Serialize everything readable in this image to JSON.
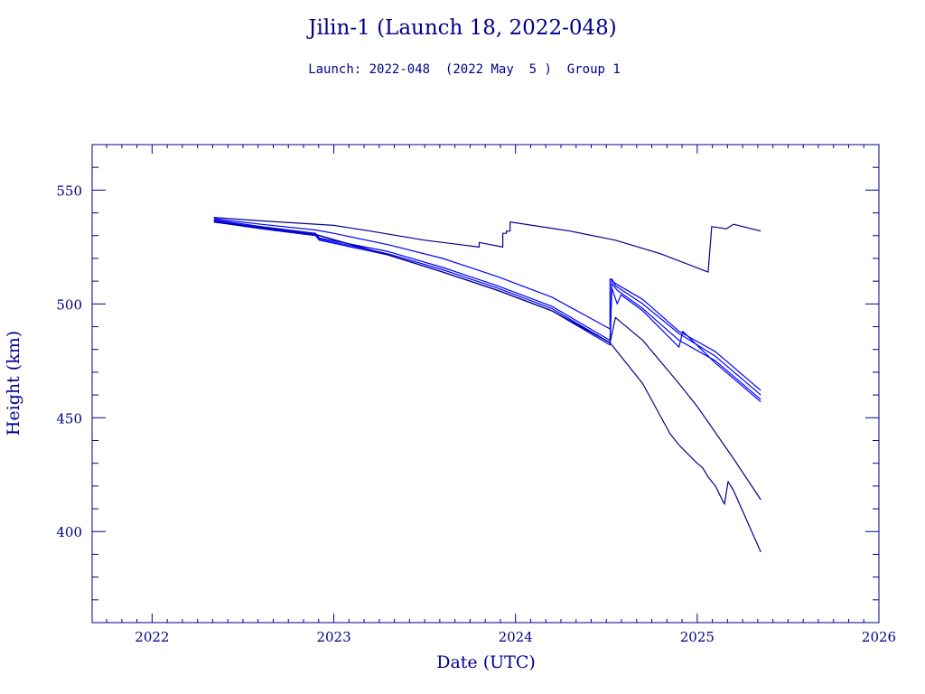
{
  "colors": {
    "axis": "#00008b",
    "series_dark": "#00008b",
    "series_bright": "#0000ff"
  },
  "chart_data": {
    "type": "line",
    "title": "Jilin-1 (Launch 18, 2022-048)",
    "subtitle": "Launch: 2022-048  (2022 May  5 )  Group 1",
    "xlabel": "Date (UTC)",
    "ylabel": "Height (km)",
    "xlim": [
      2021.67,
      2026.0
    ],
    "ylim": [
      360,
      570
    ],
    "x_ticks": [
      2022,
      2023,
      2024,
      2025,
      2026
    ],
    "y_ticks": [
      400,
      450,
      500,
      550
    ],
    "grid": false,
    "legend": "none",
    "series": [
      {
        "x": [
          2022.34,
          2022.6,
          2022.8,
          2023.0,
          2023.2,
          2023.5,
          2023.75,
          2023.8,
          2023.8,
          2023.93,
          2023.93,
          2023.95,
          2023.95,
          2023.97,
          2023.97,
          2024.3,
          2024.55,
          2024.8,
          2025.06,
          2025.06,
          2025.08,
          2025.08,
          2025.16,
          2025.16,
          2025.2,
          2025.2,
          2025.35
        ],
        "y": [
          538,
          536.5,
          535.5,
          534.5,
          532,
          528,
          525.5,
          525,
          527,
          525,
          531,
          531,
          532,
          532,
          536,
          532,
          528,
          522,
          514,
          514,
          534,
          534,
          533,
          533,
          535,
          535,
          532
        ]
      },
      {
        "x": [
          2022.34,
          2022.6,
          2022.9,
          2023.0,
          2023.3,
          2023.6,
          2023.9,
          2024.2,
          2024.52,
          2024.52,
          2024.55,
          2024.7,
          2024.9,
          2025.1,
          2025.35
        ],
        "y": [
          537.5,
          535,
          532.5,
          531,
          526,
          520,
          512,
          503,
          489,
          511,
          509,
          502,
          488,
          479,
          462
        ]
      },
      {
        "x": [
          2022.34,
          2022.6,
          2022.9,
          2022.92,
          2023.3,
          2023.6,
          2023.9,
          2024.2,
          2024.52,
          2024.53,
          2024.55,
          2024.7,
          2024.9,
          2025.1,
          2025.35
        ],
        "y": [
          537,
          534,
          531,
          529,
          523,
          516,
          508,
          499,
          484,
          511,
          508,
          500,
          487,
          477,
          460
        ]
      },
      {
        "x": [
          2022.34,
          2022.6,
          2022.9,
          2022.92,
          2023.3,
          2023.6,
          2023.9,
          2024.2,
          2024.52,
          2024.53,
          2024.56,
          2024.7,
          2024.9,
          2025.1,
          2025.35
        ],
        "y": [
          536.5,
          533.5,
          530.5,
          528.5,
          522,
          515,
          507,
          498,
          483,
          509,
          506,
          498,
          484,
          475,
          458
        ]
      },
      {
        "x": [
          2022.34,
          2022.6,
          2022.9,
          2022.92,
          2023.3,
          2023.6,
          2023.9,
          2024.2,
          2024.52,
          2024.53,
          2024.56,
          2024.58,
          2024.7,
          2024.9,
          2024.92,
          2025.1,
          2025.35
        ],
        "y": [
          536,
          533,
          530,
          528,
          521.5,
          514,
          506,
          497,
          482,
          507,
          500,
          504,
          497,
          481,
          488,
          474,
          457
        ]
      },
      {
        "x": [
          2022.34,
          2022.9,
          2023.3,
          2023.6,
          2023.9,
          2024.2,
          2024.52,
          2024.55,
          2024.7,
          2024.9,
          2025.0,
          2025.2,
          2025.35
        ],
        "y": [
          536,
          530.5,
          521.5,
          514,
          506,
          497,
          483,
          494,
          484,
          465,
          455,
          432,
          414
        ]
      },
      {
        "x": [
          2022.34,
          2022.9,
          2023.3,
          2023.6,
          2023.9,
          2024.2,
          2024.52,
          2024.7,
          2024.85,
          2024.9,
          2025.0,
          2025.03,
          2025.06,
          2025.1,
          2025.15,
          2025.17,
          2025.2,
          2025.35
        ],
        "y": [
          536,
          530.5,
          521.5,
          514,
          506,
          497,
          483,
          465,
          443,
          438,
          430,
          428,
          424,
          420,
          412,
          422,
          418,
          391
        ]
      }
    ]
  }
}
